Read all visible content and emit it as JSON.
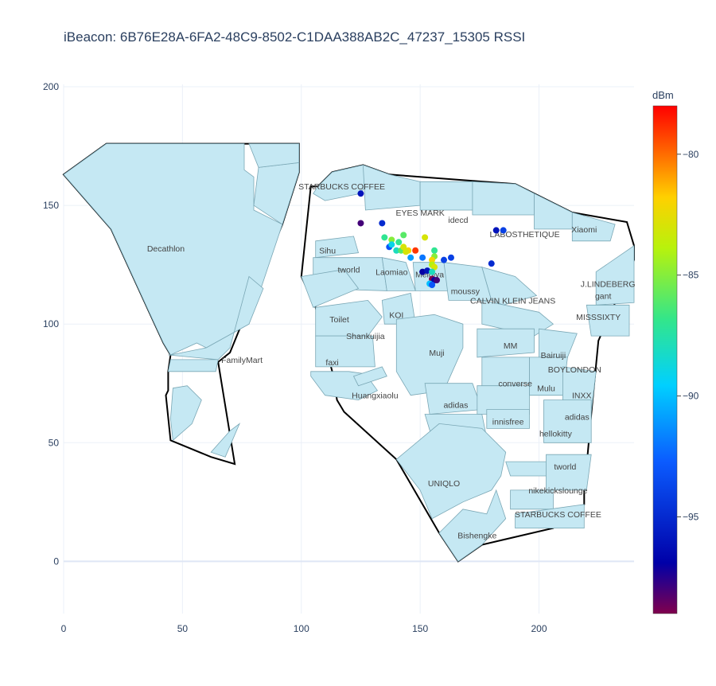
{
  "chart_data": {
    "type": "scatter",
    "title": "iBeacon: 6B76E28A-6FA2-48C9-8502-C1DAA388AB2C_47237_15305 RSSI",
    "xlabel": "",
    "ylabel": "",
    "xlim": [
      0,
      240
    ],
    "ylim": [
      -22,
      201
    ],
    "x_ticks": [
      "0",
      "50",
      "100",
      "150",
      "200"
    ],
    "x_tick_values": [
      0,
      50,
      100,
      150,
      200
    ],
    "y_ticks": [
      "0",
      "50",
      "100",
      "150",
      "200"
    ],
    "y_tick_values": [
      0,
      50,
      100,
      150,
      200
    ],
    "grid": true,
    "colorbar": {
      "title": "dBm",
      "min": -99,
      "max": -78,
      "ticks": [
        "−80",
        "−85",
        "−90",
        "−95"
      ],
      "tick_values": [
        -80,
        -85,
        -90,
        -95
      ]
    },
    "background_colors": {
      "store_fill": "#c5e8f3",
      "store_stroke": "#7aa7b5",
      "outline": "#000000"
    },
    "store_labels": [
      {
        "text": "Decathlon",
        "x": 43,
        "y": 132
      },
      {
        "text": "FamilyMart",
        "x": 75,
        "y": 85
      },
      {
        "text": "STARBUCKS COFFEE",
        "x": 117,
        "y": 158
      },
      {
        "text": "EYES MARK",
        "x": 150,
        "y": 147
      },
      {
        "text": "idecd",
        "x": 166,
        "y": 144
      },
      {
        "text": "LABOSTHETIQUE",
        "x": 194,
        "y": 138
      },
      {
        "text": "Xiaomi",
        "x": 219,
        "y": 140
      },
      {
        "text": "Sihu",
        "x": 111,
        "y": 131
      },
      {
        "text": "tworld",
        "x": 120,
        "y": 123
      },
      {
        "text": "Laomiao",
        "x": 138,
        "y": 122
      },
      {
        "text": "Meidiya",
        "x": 154,
        "y": 121
      },
      {
        "text": "moussy",
        "x": 169,
        "y": 114
      },
      {
        "text": "J.LINDEBERG",
        "x": 229,
        "y": 117
      },
      {
        "text": "gant",
        "x": 227,
        "y": 112
      },
      {
        "text": "CALVIN KLEIN JEANS",
        "x": 189,
        "y": 110
      },
      {
        "text": "KOI",
        "x": 140,
        "y": 104
      },
      {
        "text": "MISSSIXTY",
        "x": 225,
        "y": 103
      },
      {
        "text": "Toilet",
        "x": 116,
        "y": 102
      },
      {
        "text": "Shankuijia",
        "x": 127,
        "y": 95
      },
      {
        "text": "Muji",
        "x": 157,
        "y": 88
      },
      {
        "text": "MM",
        "x": 188,
        "y": 91
      },
      {
        "text": "Bairuiji",
        "x": 206,
        "y": 87
      },
      {
        "text": "faxi",
        "x": 113,
        "y": 84
      },
      {
        "text": "BOYLONDON",
        "x": 215,
        "y": 81
      },
      {
        "text": "converse",
        "x": 190,
        "y": 75
      },
      {
        "text": "Mulu",
        "x": 203,
        "y": 73
      },
      {
        "text": "INXX",
        "x": 218,
        "y": 70
      },
      {
        "text": "Huangxiaolu",
        "x": 131,
        "y": 70
      },
      {
        "text": "adidas",
        "x": 165,
        "y": 66
      },
      {
        "text": "adidas",
        "x": 216,
        "y": 61
      },
      {
        "text": "innisfree",
        "x": 187,
        "y": 59
      },
      {
        "text": "hellokitty",
        "x": 207,
        "y": 54
      },
      {
        "text": "tworld",
        "x": 211,
        "y": 40
      },
      {
        "text": "UNIQLO",
        "x": 160,
        "y": 33
      },
      {
        "text": "nikekickslounge",
        "x": 208,
        "y": 30
      },
      {
        "text": "STARBUCKS COFFEE",
        "x": 208,
        "y": 20
      },
      {
        "text": "Bishengke",
        "x": 174,
        "y": 11
      }
    ],
    "series": [
      {
        "points": [
          {
            "x": 125,
            "y": 155,
            "v": -96
          },
          {
            "x": 125,
            "y": 142.5,
            "v": -98
          },
          {
            "x": 134,
            "y": 142.5,
            "v": -95
          },
          {
            "x": 182,
            "y": 139.5,
            "v": -96
          },
          {
            "x": 185,
            "y": 139.5,
            "v": -94
          },
          {
            "x": 152,
            "y": 136.5,
            "v": -83
          },
          {
            "x": 143,
            "y": 137.5,
            "v": -86
          },
          {
            "x": 135,
            "y": 136.5,
            "v": -87
          },
          {
            "x": 138,
            "y": 135.5,
            "v": -85
          },
          {
            "x": 141,
            "y": 134.5,
            "v": -87
          },
          {
            "x": 137,
            "y": 132.5,
            "v": -93
          },
          {
            "x": 138,
            "y": 133.5,
            "v": -89
          },
          {
            "x": 140,
            "y": 131,
            "v": -88
          },
          {
            "x": 142,
            "y": 131,
            "v": -86
          },
          {
            "x": 143,
            "y": 132.5,
            "v": -83
          },
          {
            "x": 145,
            "y": 131,
            "v": -82
          },
          {
            "x": 144,
            "y": 130.5,
            "v": -83
          },
          {
            "x": 148,
            "y": 131,
            "v": -79
          },
          {
            "x": 146,
            "y": 128,
            "v": -91
          },
          {
            "x": 151,
            "y": 128,
            "v": -92
          },
          {
            "x": 156,
            "y": 131,
            "v": -87
          },
          {
            "x": 156,
            "y": 128.5,
            "v": -85
          },
          {
            "x": 155,
            "y": 127,
            "v": -82
          },
          {
            "x": 155,
            "y": 125,
            "v": -84
          },
          {
            "x": 156,
            "y": 124,
            "v": -83
          },
          {
            "x": 160,
            "y": 127,
            "v": -94
          },
          {
            "x": 163,
            "y": 128,
            "v": -94
          },
          {
            "x": 180,
            "y": 125.5,
            "v": -95
          },
          {
            "x": 151,
            "y": 122,
            "v": -97
          },
          {
            "x": 153,
            "y": 122.5,
            "v": -96
          },
          {
            "x": 155,
            "y": 122,
            "v": -88
          },
          {
            "x": 155,
            "y": 119,
            "v": -99
          },
          {
            "x": 156,
            "y": 118.5,
            "v": -97
          },
          {
            "x": 157,
            "y": 118.5,
            "v": -98
          },
          {
            "x": 154,
            "y": 117,
            "v": -90
          },
          {
            "x": 155,
            "y": 116.5,
            "v": -93
          }
        ]
      }
    ]
  }
}
